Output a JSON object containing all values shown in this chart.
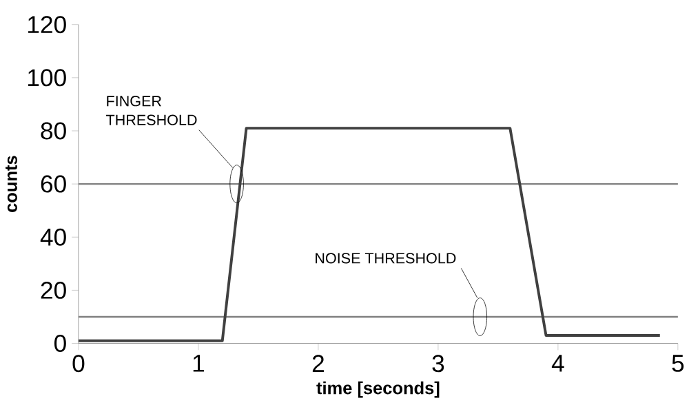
{
  "chart_data": {
    "type": "line",
    "xlabel": "time [seconds]",
    "ylabel": "counts",
    "x": [
      0,
      1.2,
      1.4,
      3.6,
      3.9,
      4.85
    ],
    "series": [
      {
        "color": "#404040",
        "values": [
          1,
          1,
          81,
          81,
          3,
          3
        ]
      }
    ],
    "xlim": [
      0,
      5
    ],
    "xticks": [
      0,
      1,
      2,
      3,
      4,
      5
    ],
    "ylim": [
      0,
      120
    ],
    "yticks": [
      0,
      20,
      40,
      60,
      80,
      100,
      120
    ],
    "ref_lines": [
      {
        "axis": "y",
        "value": 60,
        "color": "#808080"
      },
      {
        "axis": "y",
        "value": 10,
        "color": "#808080"
      }
    ],
    "annotations": [
      "FINGER THRESHOLD",
      "NOISE THRESHOLD"
    ],
    "grid": false,
    "marker": "none",
    "line_style": "solid"
  }
}
